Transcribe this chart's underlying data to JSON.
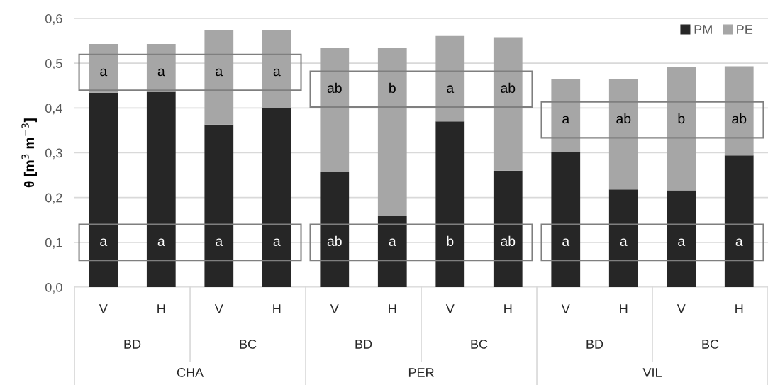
{
  "chart_data": {
    "type": "bar",
    "stacked": true,
    "ylabel": "θ [m$^{3}$ m$^{−3}$]",
    "categories": [
      "V",
      "H",
      "V",
      "H",
      "V",
      "H",
      "V",
      "H",
      "V",
      "H",
      "V",
      "H"
    ],
    "series": [
      {
        "name": "PM",
        "color": "#262626",
        "values": [
          0.434,
          0.436,
          0.363,
          0.399,
          0.257,
          0.16,
          0.37,
          0.26,
          0.302,
          0.218,
          0.216,
          0.294
        ],
        "value_labels": [
          "a",
          "a",
          "a",
          "a",
          "ab",
          "a",
          "b",
          "ab",
          "a",
          "a",
          "a",
          "a"
        ]
      },
      {
        "name": "PE",
        "color": "#a6a6a6",
        "values": [
          0.109,
          0.107,
          0.21,
          0.174,
          0.277,
          0.374,
          0.191,
          0.298,
          0.163,
          0.247,
          0.275,
          0.199
        ],
        "value_labels": [
          "a",
          "a",
          "a",
          "a",
          "ab",
          "b",
          "a",
          "ab",
          "a",
          "ab",
          "b",
          "ab"
        ]
      }
    ],
    "ylim": [
      0,
      0.6
    ],
    "yticks": [
      {
        "value": 0,
        "label": "0,0"
      },
      {
        "value": 0.1,
        "label": "0,1"
      },
      {
        "value": 0.2,
        "label": "0,2"
      },
      {
        "value": 0.3,
        "label": "0,3"
      },
      {
        "value": 0.4,
        "label": "0,4"
      },
      {
        "value": 0.5,
        "label": "0,5"
      },
      {
        "value": 0.6,
        "label": "0,6"
      }
    ],
    "grid": "y",
    "legend": "top right",
    "annotations": [
      "BD",
      "BC",
      "BD",
      "BC",
      "BD",
      "BC",
      "CHA",
      "PER",
      "VIL"
    ]
  }
}
